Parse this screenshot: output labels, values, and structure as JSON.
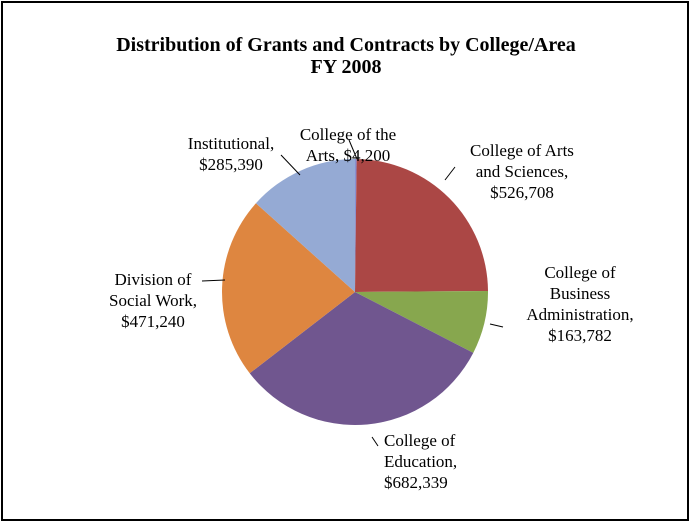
{
  "chart_data": {
    "type": "pie",
    "title": "Distribution of Grants and Contracts by College/Area",
    "subtitle": "FY 2008",
    "slices": [
      {
        "name": "College of the Arts",
        "value": 4200,
        "label_lines": [
          "College of the",
          "Arts, $4,200"
        ],
        "color": "#8a8fd0"
      },
      {
        "name": "College of Arts and Sciences",
        "value": 526708,
        "label_lines": [
          "College of Arts",
          "and Sciences,",
          "$526,708"
        ],
        "color": "#ab4745"
      },
      {
        "name": "College of Business Administration",
        "value": 163782,
        "label_lines": [
          "College of",
          "Business",
          "Administration,",
          "$163,782"
        ],
        "color": "#87a74e"
      },
      {
        "name": "College of Education",
        "value": 682339,
        "label_lines": [
          "College of",
          "Education,",
          "$682,339"
        ],
        "color": "#70568f"
      },
      {
        "name": "Division of Social Work",
        "value": 471240,
        "label_lines": [
          "Division of",
          "Social Work,",
          "$471,240"
        ],
        "color": "#de8640"
      },
      {
        "name": "Institutional",
        "value": 285390,
        "label_lines": [
          "Institutional,",
          "$285,390"
        ],
        "color": "#95aad4"
      }
    ]
  }
}
